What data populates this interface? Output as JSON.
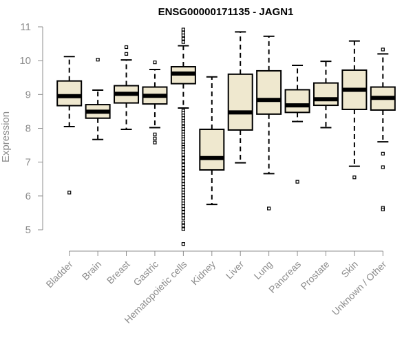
{
  "chart_data": {
    "type": "box",
    "title": "ENSG00000171135 - JAGN1",
    "xlabel": "",
    "ylabel": "Expression",
    "ylim": [
      4.4,
      11.1
    ],
    "yticks": [
      5,
      6,
      7,
      8,
      9,
      10,
      11
    ],
    "box_fill": "#efe8cf",
    "categories": [
      "Bladder",
      "Brain",
      "Breast",
      "Gastric",
      "Hematopoietic cells",
      "Kidney",
      "Liver",
      "Lung",
      "Pancreas",
      "Prostate",
      "Skin",
      "Unknown / Other"
    ],
    "boxes": [
      {
        "q1": 8.67,
        "median": 8.95,
        "q3": 9.4,
        "whisker_low": 8.05,
        "whisker_high": 10.12,
        "outliers": [
          6.1
        ]
      },
      {
        "q1": 8.3,
        "median": 8.49,
        "q3": 8.7,
        "whisker_low": 7.67,
        "whisker_high": 9.13,
        "outliers": [
          10.03
        ]
      },
      {
        "q1": 8.75,
        "median": 9.02,
        "q3": 9.26,
        "whisker_low": 7.97,
        "whisker_high": 10.02,
        "outliers": [
          10.2,
          10.4
        ]
      },
      {
        "q1": 8.72,
        "median": 8.96,
        "q3": 9.22,
        "whisker_low": 8.02,
        "whisker_high": 9.74,
        "outliers": [
          9.95,
          7.82,
          7.7,
          7.58
        ]
      },
      {
        "q1": 9.32,
        "median": 9.62,
        "q3": 9.82,
        "whisker_low": 8.6,
        "whisker_high": 10.44,
        "outliers": [
          10.55,
          10.65,
          10.75,
          10.83,
          10.92,
          8.52,
          8.45,
          8.38,
          8.3,
          8.22,
          8.15,
          8.05,
          7.98,
          7.9,
          7.82,
          7.75,
          7.68,
          7.6,
          7.52,
          7.45,
          7.38,
          7.3,
          7.22,
          7.12,
          7.02,
          6.92,
          6.82,
          6.72,
          6.62,
          6.52,
          6.44,
          6.35,
          6.27,
          6.18,
          6.1,
          6.02,
          5.94,
          5.86,
          5.78,
          5.7,
          5.62,
          5.52,
          5.43,
          5.34,
          5.22,
          5.12,
          5.02,
          4.58
        ]
      },
      {
        "q1": 6.77,
        "median": 7.12,
        "q3": 7.97,
        "whisker_low": 5.75,
        "whisker_high": 9.52,
        "outliers": []
      },
      {
        "q1": 7.95,
        "median": 8.47,
        "q3": 9.6,
        "whisker_low": 6.98,
        "whisker_high": 10.85,
        "outliers": []
      },
      {
        "q1": 8.42,
        "median": 8.84,
        "q3": 9.7,
        "whisker_low": 6.66,
        "whisker_high": 10.72,
        "outliers": [
          5.63
        ]
      },
      {
        "q1": 8.47,
        "median": 8.68,
        "q3": 9.14,
        "whisker_low": 8.2,
        "whisker_high": 9.86,
        "outliers": [
          6.42
        ]
      },
      {
        "q1": 8.68,
        "median": 8.86,
        "q3": 9.34,
        "whisker_low": 8.02,
        "whisker_high": 9.98,
        "outliers": []
      },
      {
        "q1": 8.56,
        "median": 9.14,
        "q3": 9.72,
        "whisker_low": 6.88,
        "whisker_high": 10.58,
        "outliers": [
          6.55
        ]
      },
      {
        "q1": 8.54,
        "median": 8.9,
        "q3": 9.22,
        "whisker_low": 7.6,
        "whisker_high": 10.2,
        "outliers": [
          10.33,
          7.25,
          6.85,
          5.65,
          5.6
        ]
      }
    ]
  }
}
